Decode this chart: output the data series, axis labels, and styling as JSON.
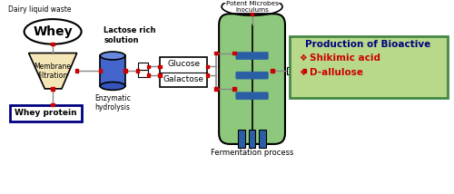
{
  "bg_color": "#ffffff",
  "title_text": "Dairy liquid waste",
  "whey_label": "Whey",
  "lactose_label": "Lactose rich\nsolution",
  "membrane_label": "Membrane\nfiltration",
  "enzymatic_label": "Enzymatic\nhydrolysis",
  "glucose_label": "Glucose",
  "galactose_label": "Galactose",
  "fermentation_label": "Fermentation process",
  "microbes_label": "Potent Microbes\ninoculums",
  "whey_protein_label": "Whey protein",
  "production_title": "Production of Bioactive",
  "product1": "Shikimic acid",
  "product2": "D-allulose",
  "line_color": "#888888",
  "production_bg": "#b8d98a",
  "production_border": "#448844",
  "production_title_color": "#000080",
  "product_color": "#cc0000",
  "funnel_color": "#f5e6b8",
  "cylinder_top_color": "#6688dd",
  "cylinder_body_color": "#4466cc",
  "cylinder_bottom_color": "#3355bb",
  "fermenter_color": "#8dc87d",
  "fermenter_band_color": "#2b5fa5",
  "whey_protein_border": "#000080",
  "red_marker": "#cc0000"
}
